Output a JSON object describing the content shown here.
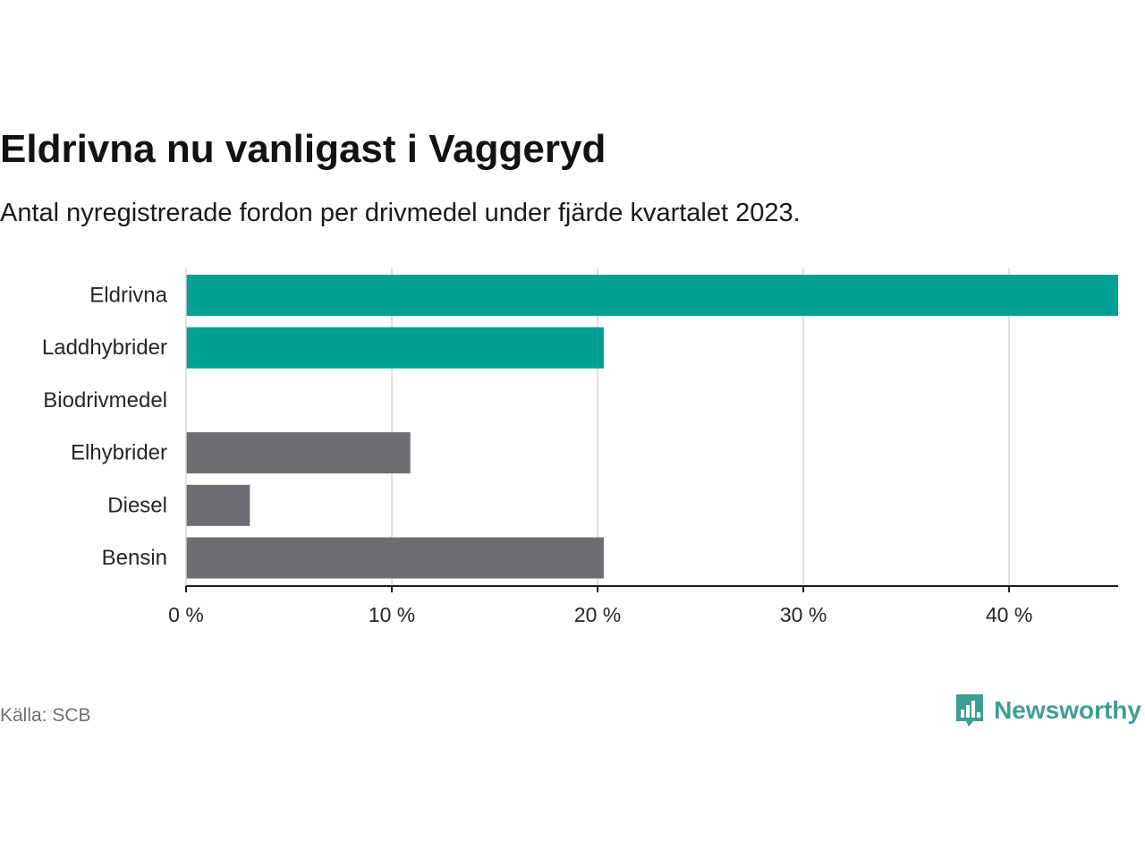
{
  "brand_color": "#3d9e94",
  "chart_data": {
    "type": "bar",
    "orientation": "horizontal",
    "title": "Eldrivna nu vanligast i Vaggeryd",
    "subtitle": "Antal nyregistrerade fordon per drivmedel under fjärde kvartalet 2023.",
    "categories": [
      "Eldrivna",
      "Laddhybrider",
      "Biodrivmedel",
      "Elhybrider",
      "Diesel",
      "Bensin"
    ],
    "values": [
      45.3,
      20.3,
      0,
      10.9,
      3.1,
      20.3
    ],
    "colors": [
      "#00a195",
      "#00a195",
      "#00a195",
      "#6e6d73",
      "#6e6d73",
      "#6e6d73"
    ],
    "xlim": [
      0,
      45.3
    ],
    "xticks": [
      0,
      10,
      20,
      30,
      40
    ],
    "xtick_labels": [
      "0 %",
      "10 %",
      "20 %",
      "30 %",
      "40 %"
    ],
    "xlabel": "",
    "ylabel": "",
    "grid": true
  },
  "footer": {
    "source": "Källa: SCB",
    "brand": "Newsworthy"
  }
}
